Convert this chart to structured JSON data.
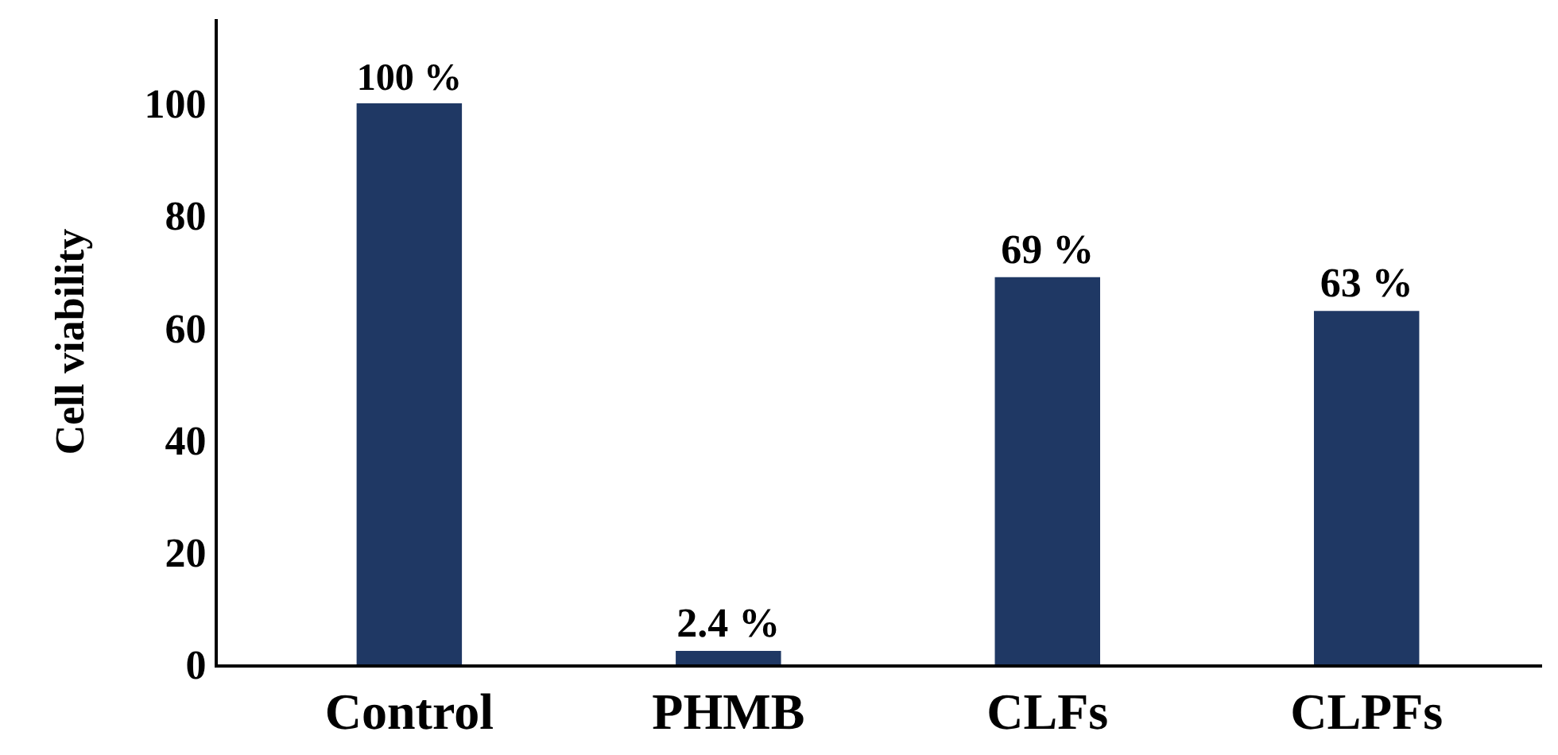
{
  "chart_data": {
    "type": "bar",
    "ylabel": "Cell viability",
    "categories": [
      "Control",
      "PHMB",
      "CLFs",
      "CLPFs"
    ],
    "values": [
      100,
      2.4,
      69,
      63
    ],
    "value_labels": [
      "100 %",
      "2.4 %",
      "69 %",
      "63 %"
    ],
    "color": "#1f3864",
    "ylim": [
      0,
      115
    ],
    "yticks": [
      0,
      20,
      40,
      60,
      80,
      100
    ],
    "grid": false
  }
}
